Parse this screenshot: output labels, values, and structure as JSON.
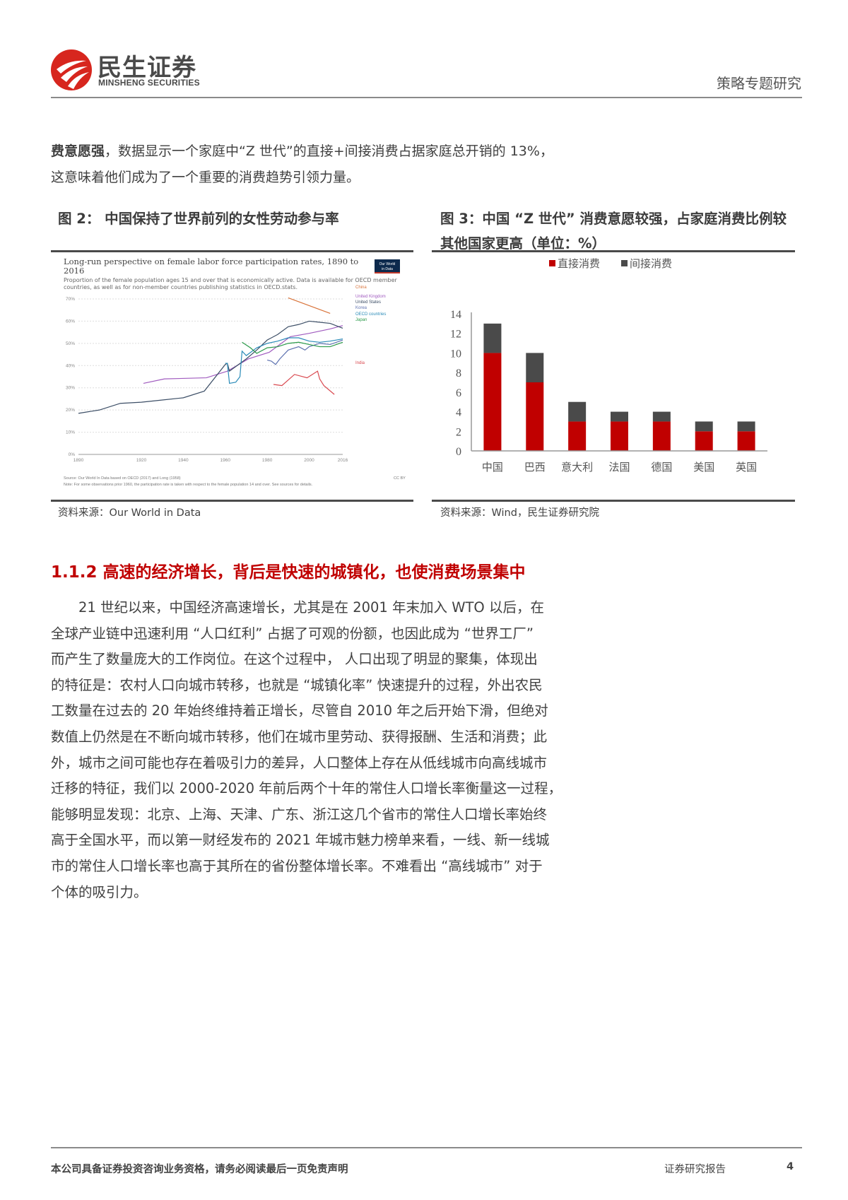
{
  "header": {
    "logo_cn": "民生证券",
    "logo_en": "MINSHENG SECURITIES",
    "report_type": "策略专题研究"
  },
  "intro": {
    "bold_lead": "费意愿强",
    "line1_rest": "，数据显示一个家庭中“Z 世代”的直接+间接消费占据家庭总开销的 13%，",
    "line2": "这意味着他们成为了一个重要的消费趋势引领力量。"
  },
  "figure2": {
    "caption": "图 2：  中国保持了世界前列的女性劳动参与率",
    "source": "资料来源：Our World in Data"
  },
  "figure3": {
    "caption_line1": "图 3：中国 “Z 世代” 消费意愿较强，占家庭消费比例较",
    "caption_line2": "其他国家更高（单位：%）",
    "source": "资料来源：Wind，民生证券研究院"
  },
  "chart_data": [
    {
      "type": "line",
      "title": "Long-run perspective on female labor force participation rates, 1890 to 2016",
      "subtitle": "Proportion of the female population ages 15 and over that is economically active. Data is available for OECD member countries, as well as for non-member countries publishing statistics in OECD.stats.",
      "logo_text": "Our World in Data",
      "source_note": "Source: Our World In Data based on OECD (2017) and Long (1958)",
      "footnote": "Note: For some observations prior 1960, the participation rate is taken with respect to the female population 14 and over. See sources for details.",
      "license": "CC BY",
      "xlim": [
        1890,
        2016
      ],
      "ylim": [
        0,
        70
      ],
      "x_ticks": [
        "1890",
        "1920",
        "1940",
        "1960",
        "1980",
        "2000",
        "2016"
      ],
      "x_tick_values": [
        1890,
        1920,
        1940,
        1960,
        1980,
        2000,
        2016
      ],
      "y_ticks": [
        "0%",
        "10%",
        "20%",
        "30%",
        "40%",
        "50%",
        "60%",
        "70%"
      ],
      "y_tick_values": [
        0,
        10,
        20,
        30,
        40,
        50,
        60,
        70
      ],
      "grid": true,
      "legend": "right (inline labels)",
      "series": [
        {
          "name": "China",
          "color": "#d9743b",
          "x": [
            1990,
            2010
          ],
          "y": [
            70.5,
            63.5
          ]
        },
        {
          "name": "United Kingdom",
          "color": "#a05bbf",
          "x": [
            1921,
            1931,
            1951,
            1961,
            1971,
            1981,
            1991,
            2000,
            2010,
            2016
          ],
          "y": [
            32,
            34,
            34.5,
            37.5,
            43,
            46,
            53,
            54.5,
            56.5,
            58
          ]
        },
        {
          "name": "United States",
          "color": "#3c4e66",
          "x": [
            1890,
            1900,
            1910,
            1920,
            1930,
            1940,
            1950,
            1960,
            1961,
            1962,
            1970,
            1975,
            1980,
            1985,
            1990,
            1995,
            2000,
            2005,
            2010,
            2016
          ],
          "y": [
            18.5,
            20,
            23,
            23.5,
            24.5,
            25.5,
            28.5,
            40.5,
            41,
            37.5,
            43,
            47,
            51.5,
            54,
            57.5,
            58.5,
            60,
            59.5,
            59,
            56.8
          ]
        },
        {
          "name": "Korea",
          "color": "#5e72b0",
          "x": [
            1980,
            1982,
            1984,
            1986,
            1990,
            1995,
            1998,
            2000,
            2005,
            2010,
            2016
          ],
          "y": [
            42.5,
            42,
            40.5,
            43,
            47,
            48.5,
            47,
            48.5,
            50,
            49.5,
            51.5
          ]
        },
        {
          "name": "OECD countries",
          "color": "#2a8bb8",
          "x": [
            1960,
            1961,
            1962,
            1965,
            1967,
            1968,
            1970,
            1975,
            1980,
            1985,
            1990,
            1995,
            2000,
            2005,
            2010,
            2016
          ],
          "y": [
            41,
            41,
            32,
            32.5,
            35,
            46.5,
            44.5,
            48,
            50,
            51,
            52.5,
            52.5,
            51,
            50.5,
            51,
            52
          ]
        },
        {
          "name": "Japan",
          "color": "#2b9a4a",
          "x": [
            1968,
            1972,
            1975,
            1980,
            1985,
            1990,
            1995,
            2000,
            2005,
            2010,
            2016
          ],
          "y": [
            50.5,
            48,
            45.5,
            48,
            48.5,
            50,
            50.5,
            49.5,
            48.5,
            48.5,
            50.5
          ]
        },
        {
          "name": "India",
          "color": "#d9484f",
          "x": [
            1983,
            1987,
            1993,
            1999,
            2004,
            2005,
            2007,
            2012
          ],
          "y": [
            31.5,
            31,
            36,
            34.5,
            37.5,
            34,
            31,
            27
          ]
        }
      ]
    },
    {
      "type": "bar",
      "stacked": true,
      "categories": [
        "中国",
        "巴西",
        "意大利",
        "法国",
        "德国",
        "美国",
        "英国"
      ],
      "ylim": [
        0,
        14
      ],
      "y_ticks": [
        "0",
        "2",
        "4",
        "6",
        "8",
        "10",
        "12",
        "14"
      ],
      "y_tick_values": [
        0,
        2,
        4,
        6,
        8,
        10,
        12,
        14
      ],
      "grid": false,
      "legend": "top",
      "series": [
        {
          "name": "直接消费",
          "color": "#c00000",
          "values": [
            10,
            7,
            3,
            3,
            3,
            2,
            2
          ]
        },
        {
          "name": "间接消费",
          "color": "#4a4a4a",
          "values": [
            3,
            3,
            2,
            1,
            1,
            1,
            1
          ]
        }
      ]
    }
  ],
  "section": {
    "heading": "1.1.2 高速的经济增长，背后是快速的城镇化，也使消费场景集中",
    "lines": [
      "　　21 世纪以来，中国经济高速增长，尤其是在 2001 年末加入 WTO 以后，在",
      "全球产业链中迅速利用 “人口红利” 占据了可观的份额，也因此成为 “世界工厂”",
      "而产生了数量庞大的工作岗位。在这个过程中， 人口出现了明显的聚集，体现出",
      "的特征是：农村人口向城市转移，也就是 “城镇化率” 快速提升的过程，外出农民",
      "工数量在过去的 20 年始终维持着正增长，尽管自 2010 年之后开始下滑，但绝对",
      "数值上仍然是在不断向城市转移，他们在城市里劳动、获得报酬、生活和消费；此",
      "外，城市之间可能也存在着吸引力的差异，人口整体上存在从低线城市向高线城市",
      "迁移的特征，我们以 2000-2020 年前后两个十年的常住人口增长率衡量这一过程，",
      "能够明显发现：北京、上海、天津、广东、浙江这几个省市的常住人口增长率始终",
      "高于全国水平，而以第一财经发布的 2021 年城市魅力榜单来看，一线、新一线城",
      "市的常住人口增长率也高于其所在的省份整体增长率。不难看出 “高线城市” 对于",
      "个体的吸引力。"
    ]
  },
  "footer": {
    "disclaimer": "本公司具备证券投资咨询业务资格，请务必阅读最后一页免责声明",
    "label": "证券研究报告",
    "page_number": "4"
  }
}
